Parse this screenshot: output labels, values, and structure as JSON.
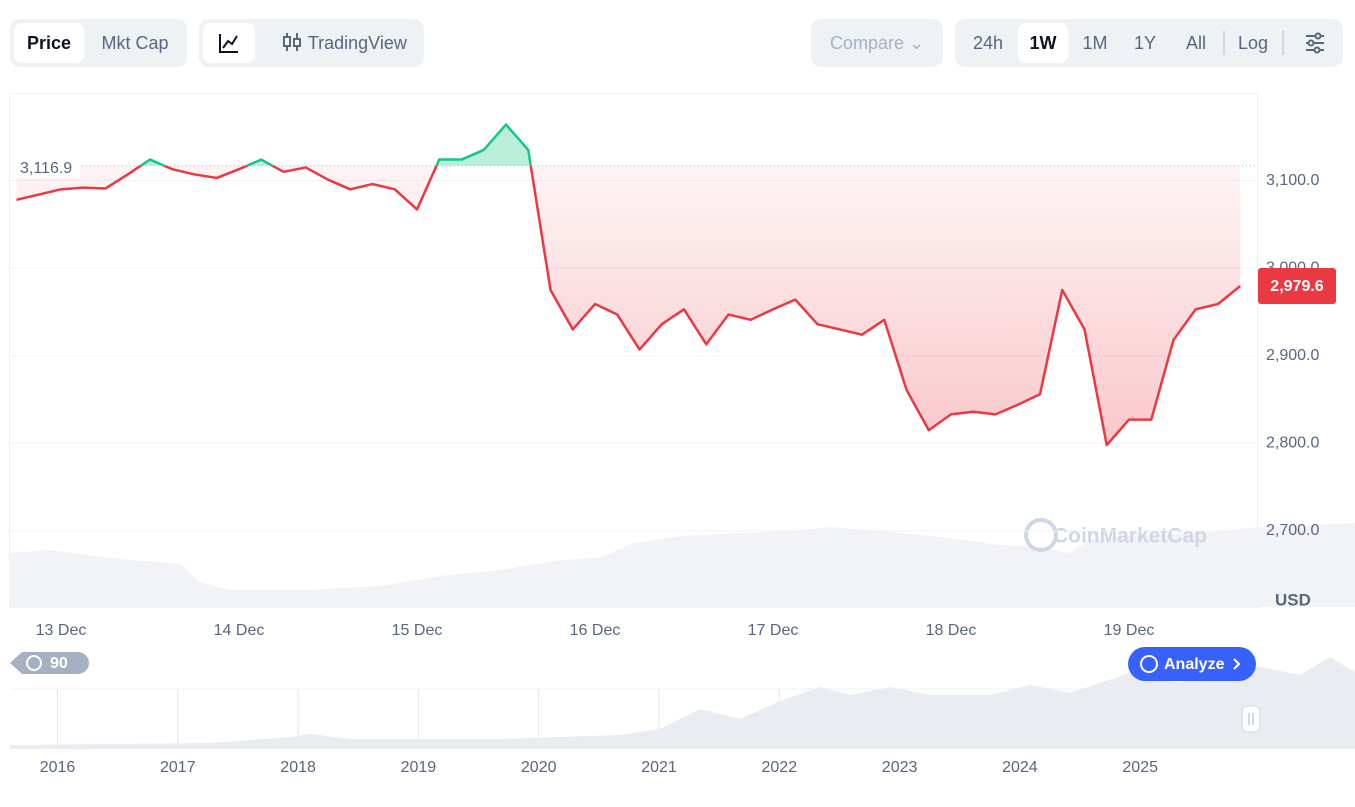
{
  "toolbar": {
    "price": "Price",
    "mkt_cap": "Mkt Cap",
    "tradingview": "TradingView",
    "compare": "Compare",
    "ranges": [
      "24h",
      "1W",
      "1M",
      "1Y",
      "All"
    ],
    "log": "Log"
  },
  "chart_data": {
    "type": "line",
    "color": "#ea3943",
    "up_color": "#16c784",
    "categories": [
      null,
      null,
      "13 Dec",
      null,
      null,
      null,
      null,
      null,
      null,
      null,
      "14 Dec",
      null,
      null,
      null,
      null,
      null,
      null,
      null,
      "15 Dec",
      null,
      null,
      null,
      null,
      null,
      null,
      null,
      "16 Dec",
      null,
      null,
      null,
      null,
      null,
      null,
      null,
      "17 Dec",
      null,
      null,
      null,
      null,
      null,
      null,
      null,
      "18 Dec",
      null,
      null,
      null,
      null,
      null,
      null,
      null,
      "19 Dec",
      null,
      null,
      null,
      null,
      null
    ],
    "values": [
      3078,
      3084,
      3090,
      3092,
      3091,
      3107,
      3124,
      3113,
      3107,
      3103,
      3113,
      3124,
      3110,
      3115,
      3101,
      3090,
      3096,
      3090,
      3067,
      3124,
      3124,
      3135,
      3164,
      3135,
      2975,
      2930,
      2959,
      2947,
      2907,
      2936,
      2953,
      2913,
      2947,
      2941,
      2953,
      2964,
      2936,
      2930,
      2924,
      2941,
      2861,
      2815,
      2833,
      2836,
      2833,
      2844,
      2856,
      2975,
      2930,
      2798,
      2827,
      2827,
      2918,
      2953,
      2959,
      2979.6
    ],
    "ylim": [
      2613,
      3200
    ],
    "yticks": [
      {
        "value": 2700,
        "label": "2,700.0"
      },
      {
        "value": 2800,
        "label": "2,800.0"
      },
      {
        "value": 2900,
        "label": "2,900.0"
      },
      {
        "value": 3000,
        "label": "3,000.0"
      },
      {
        "value": 3100,
        "label": "3,100.0"
      }
    ],
    "grid": true,
    "ylabel": "USD",
    "annotations": [
      {
        "value": 2979.6,
        "label": "2,979.6"
      },
      {
        "value": 3116.9,
        "label": "3,116.9"
      }
    ],
    "watermark": "CoinMarketCap"
  },
  "navigator": {
    "years": [
      "2016",
      "2017",
      "2018",
      "2019",
      "2020",
      "2021",
      "2022",
      "2023",
      "2024",
      "2025"
    ],
    "history_badge": "90",
    "analyze": "Analyze"
  }
}
